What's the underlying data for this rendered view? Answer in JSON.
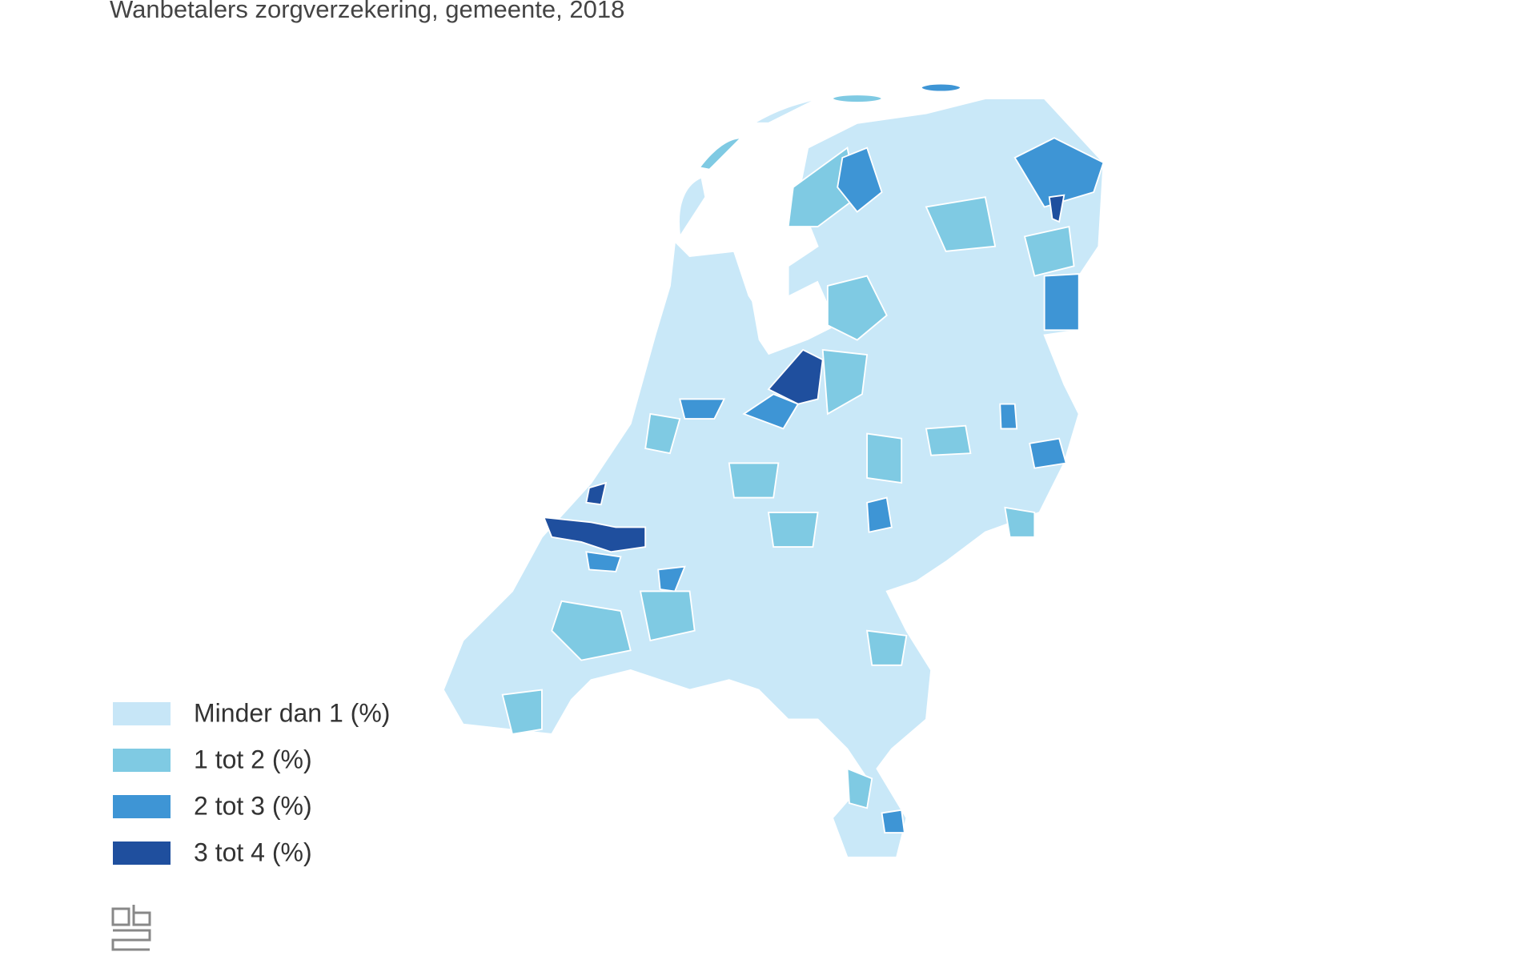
{
  "header": {
    "title": "Wanbetalers zorgverzekering, gemeente, 2018"
  },
  "legend": {
    "items": [
      {
        "label": "Minder dan 1 (%)",
        "color": "#c7e6f7"
      },
      {
        "label": "1 tot 2 (%)",
        "color": "#7fcae3"
      },
      {
        "label": "2 tot 3 (%)",
        "color": "#3e95d5"
      },
      {
        "label": "3 tot 4 (%)",
        "color": "#1f4f9e"
      }
    ]
  }
}
